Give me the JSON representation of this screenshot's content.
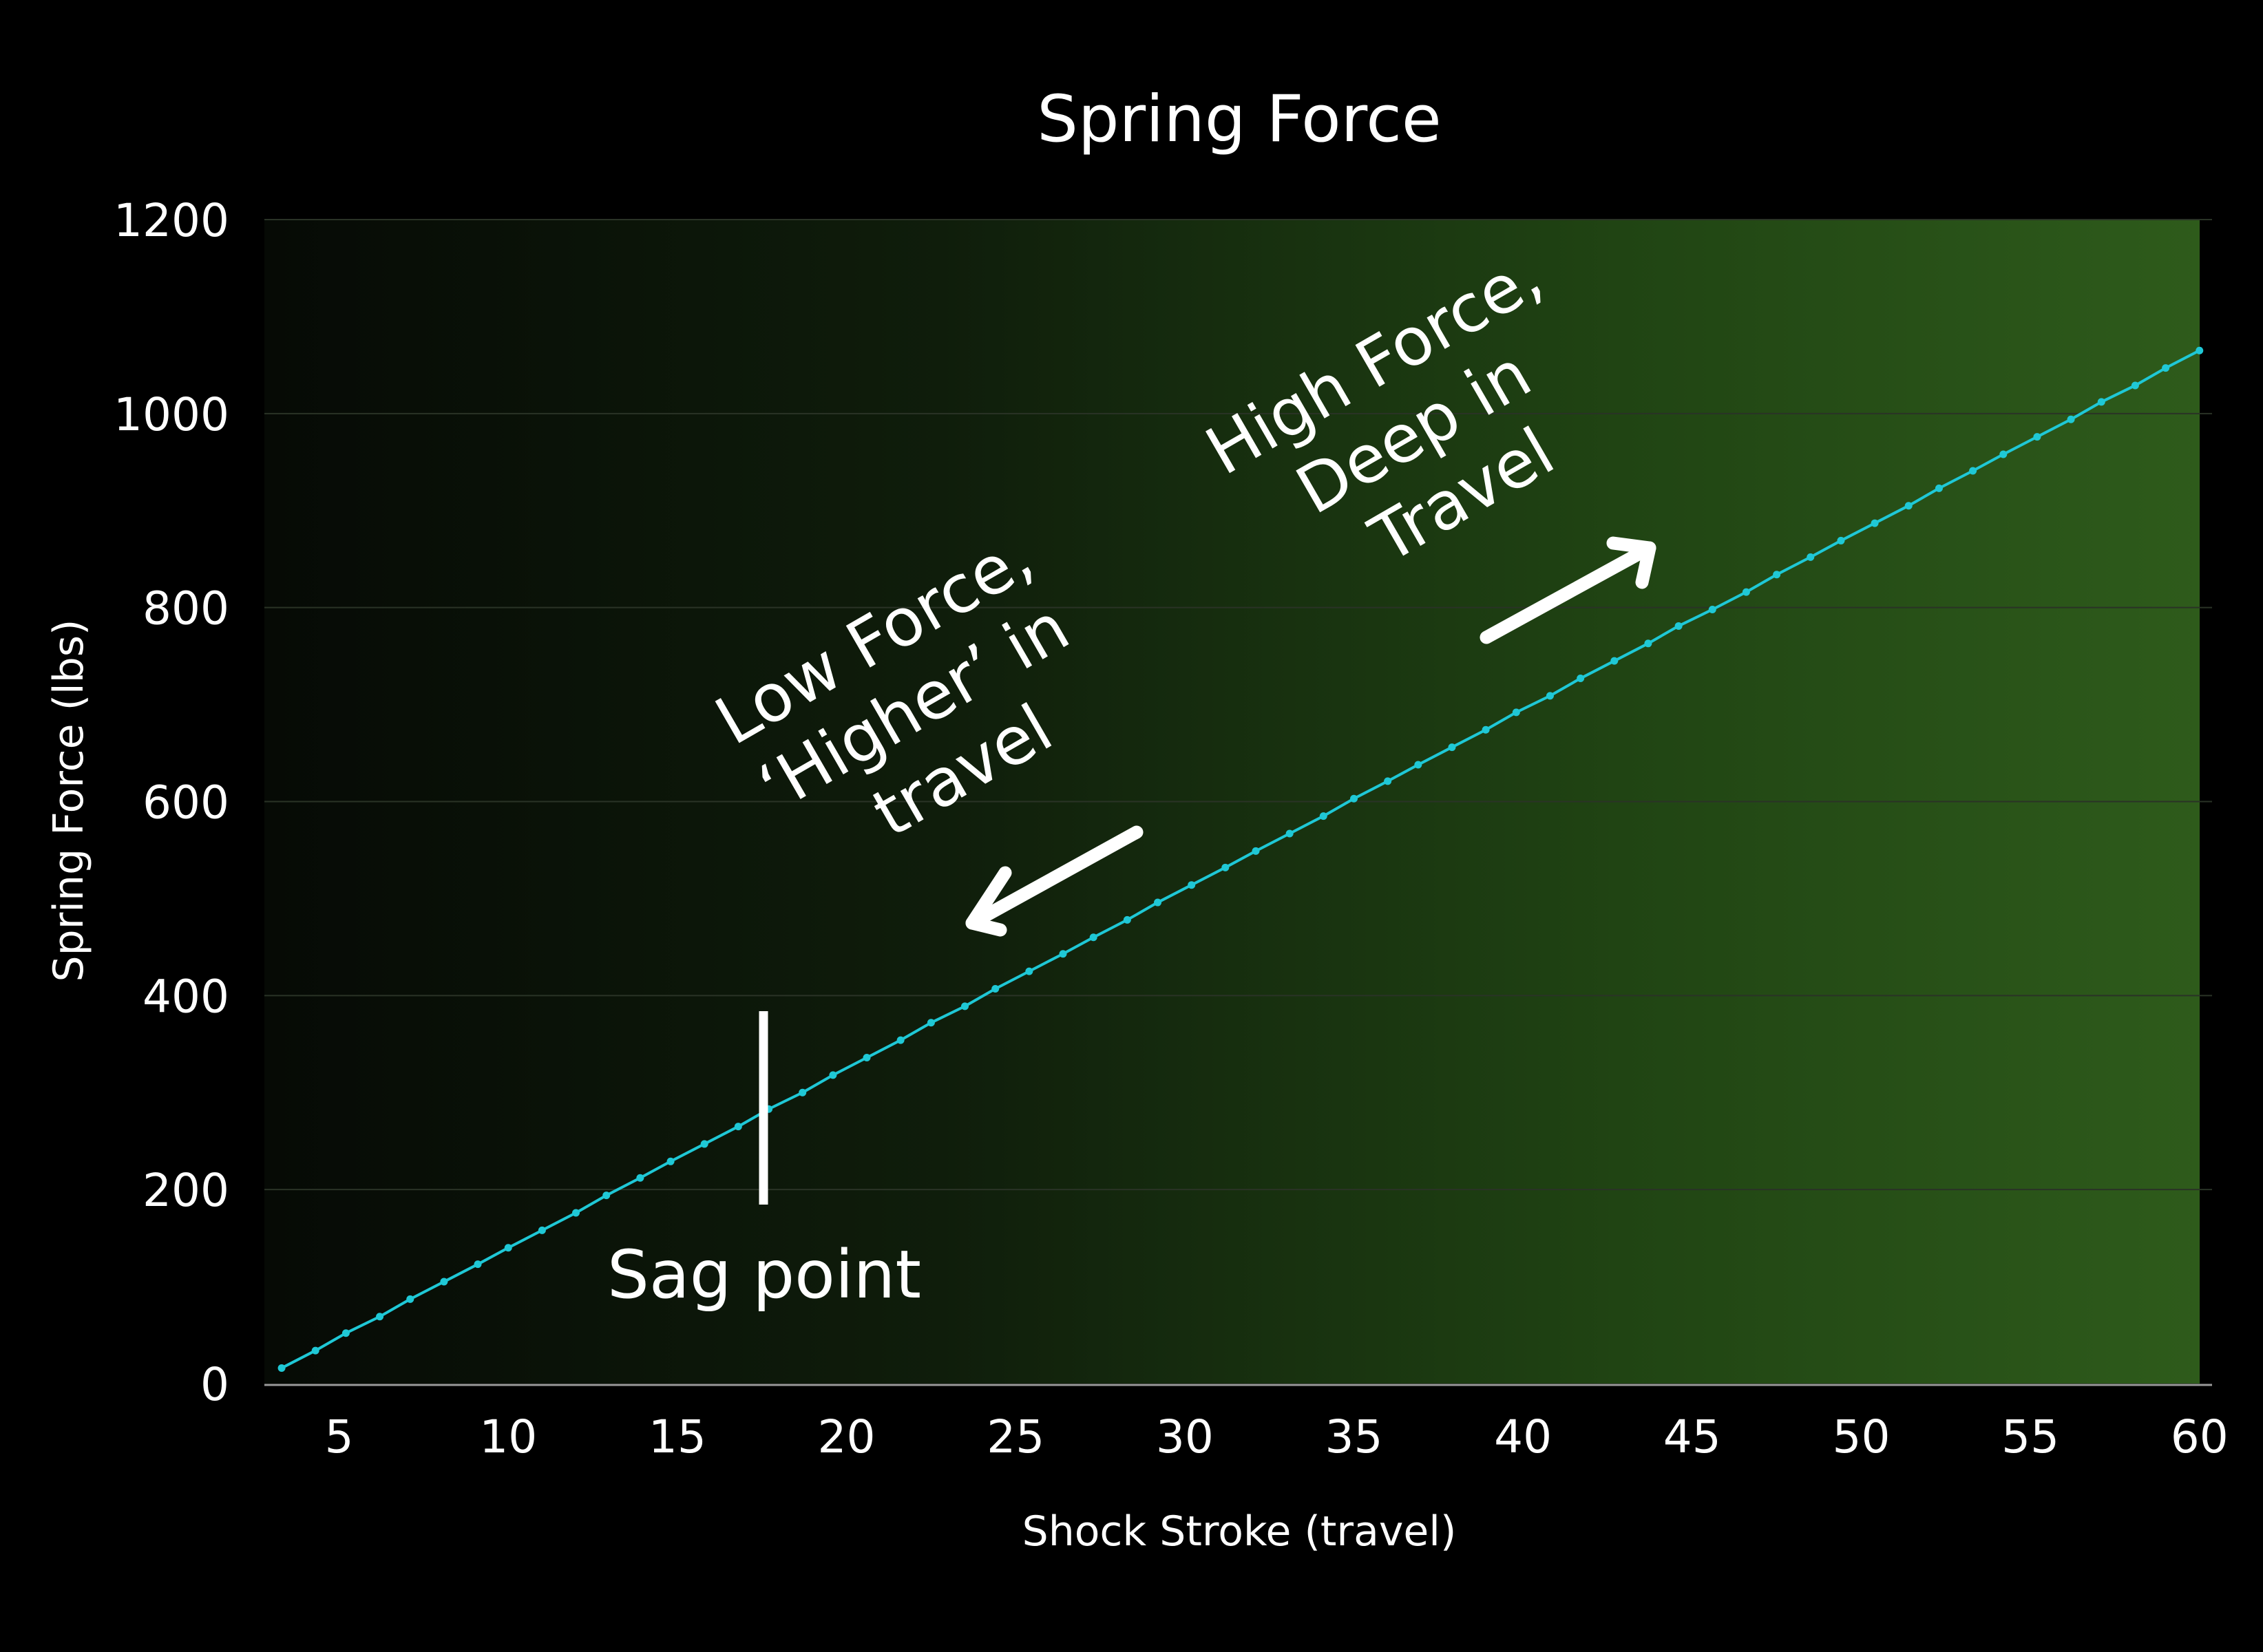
{
  "chart_data": {
    "type": "line",
    "title": "Spring Force",
    "xlabel": "Shock Stroke (travel)",
    "ylabel": "Spring Force (lbs)",
    "xlim": [
      2.6,
      60
    ],
    "ylim": [
      0,
      1200
    ],
    "x_ticks": [
      "5",
      "10",
      "15",
      "20",
      "25",
      "30",
      "35",
      "40",
      "45",
      "50",
      "55",
      "60"
    ],
    "y_ticks": [
      "0",
      "200",
      "400",
      "600",
      "800",
      "1000",
      "1200"
    ],
    "grid": true,
    "legend": "none",
    "colors": {
      "line": "#1fc8d6",
      "background_left": "#060a05",
      "background_right": "#2e5b1b",
      "text": "#ffffff"
    },
    "series": [
      {
        "x": [
          3.3,
          4.3,
          5.2,
          6.2,
          7.1,
          8.1,
          9.1,
          10.0,
          11.0,
          12.0,
          12.9,
          13.9,
          14.8,
          15.8,
          16.8,
          17.7,
          18.7,
          19.6,
          20.6,
          21.6,
          22.5,
          23.5,
          24.4,
          25.4,
          26.4,
          27.3,
          28.3,
          29.2,
          30.2,
          31.2,
          32.1,
          33.1,
          34.1,
          35.0,
          36.0,
          36.9,
          37.9,
          38.9,
          39.8,
          40.8,
          41.7,
          42.7,
          43.7,
          44.6,
          45.6,
          46.6,
          47.5,
          48.5,
          49.4,
          50.4,
          51.4,
          52.3,
          53.3,
          54.2,
          55.2,
          56.2,
          57.1,
          58.1,
          59.0,
          60.0
        ],
        "y": [
          16,
          34,
          52,
          69,
          87,
          105,
          123,
          140,
          158,
          176,
          194,
          212,
          229,
          247,
          265,
          283,
          300,
          318,
          336,
          354,
          372,
          389,
          407,
          425,
          443,
          460,
          478,
          496,
          514,
          532,
          549,
          567,
          585,
          603,
          621,
          638,
          656,
          674,
          692,
          709,
          727,
          745,
          763,
          781,
          798,
          816,
          834,
          852,
          869,
          887,
          905,
          923,
          941,
          958,
          976,
          994,
          1012,
          1029,
          1047,
          1065
        ]
      }
    ],
    "annotations": {
      "sag": {
        "label": "Sag point",
        "x": 17.5
      },
      "low": {
        "lines": [
          "Low Force,",
          "‘Higher’ in",
          "travel"
        ]
      },
      "high": {
        "lines": [
          "High Force,",
          "Deep in",
          "Travel"
        ]
      }
    }
  }
}
